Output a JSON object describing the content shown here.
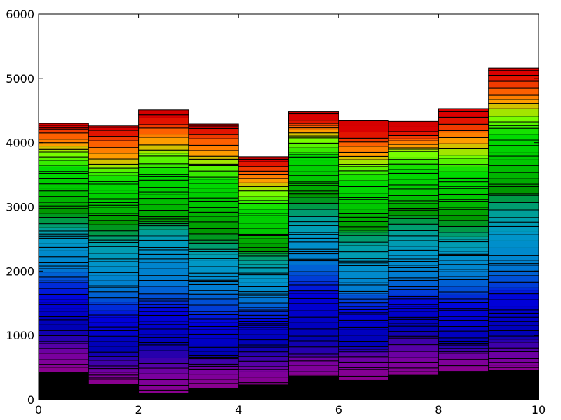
{
  "chart_data": {
    "type": "bar",
    "title": "",
    "xlabel": "",
    "ylabel": "",
    "xlim": [
      0,
      10
    ],
    "ylim": [
      0,
      6000
    ],
    "xticks": [
      0,
      2,
      4,
      6,
      8,
      10
    ],
    "yticks": [
      0,
      1000,
      2000,
      3000,
      4000,
      5000,
      6000
    ],
    "grid": false,
    "legend": "none",
    "bin_edges": [
      0,
      1,
      2,
      3,
      4,
      5,
      6,
      7,
      8,
      9,
      10
    ],
    "stack_totals": [
      4300,
      4260,
      4510,
      4290,
      3780,
      4480,
      4340,
      4330,
      4530,
      5160
    ],
    "base_segment_values": [
      430,
      240,
      100,
      170,
      230,
      370,
      300,
      380,
      440,
      460
    ],
    "base_color": "#000000",
    "edge_color": "#000000",
    "segment_count_per_bar": 62,
    "colormap_stops": [
      {
        "f": 0.0,
        "c": "#000000"
      },
      {
        "f": 0.06,
        "c": "#8c008c"
      },
      {
        "f": 0.12,
        "c": "#7800a0"
      },
      {
        "f": 0.2,
        "c": "#0000b4"
      },
      {
        "f": 0.32,
        "c": "#0000dc"
      },
      {
        "f": 0.42,
        "c": "#0078d2"
      },
      {
        "f": 0.52,
        "c": "#0098c8"
      },
      {
        "f": 0.58,
        "c": "#00a0a0"
      },
      {
        "f": 0.64,
        "c": "#009600"
      },
      {
        "f": 0.72,
        "c": "#00c800"
      },
      {
        "f": 0.8,
        "c": "#00dc00"
      },
      {
        "f": 0.86,
        "c": "#80ff00"
      },
      {
        "f": 0.9,
        "c": "#ffa000"
      },
      {
        "f": 0.93,
        "c": "#ff6400"
      },
      {
        "f": 0.97,
        "c": "#dc0000"
      },
      {
        "f": 1.0,
        "c": "#d20000"
      }
    ]
  }
}
